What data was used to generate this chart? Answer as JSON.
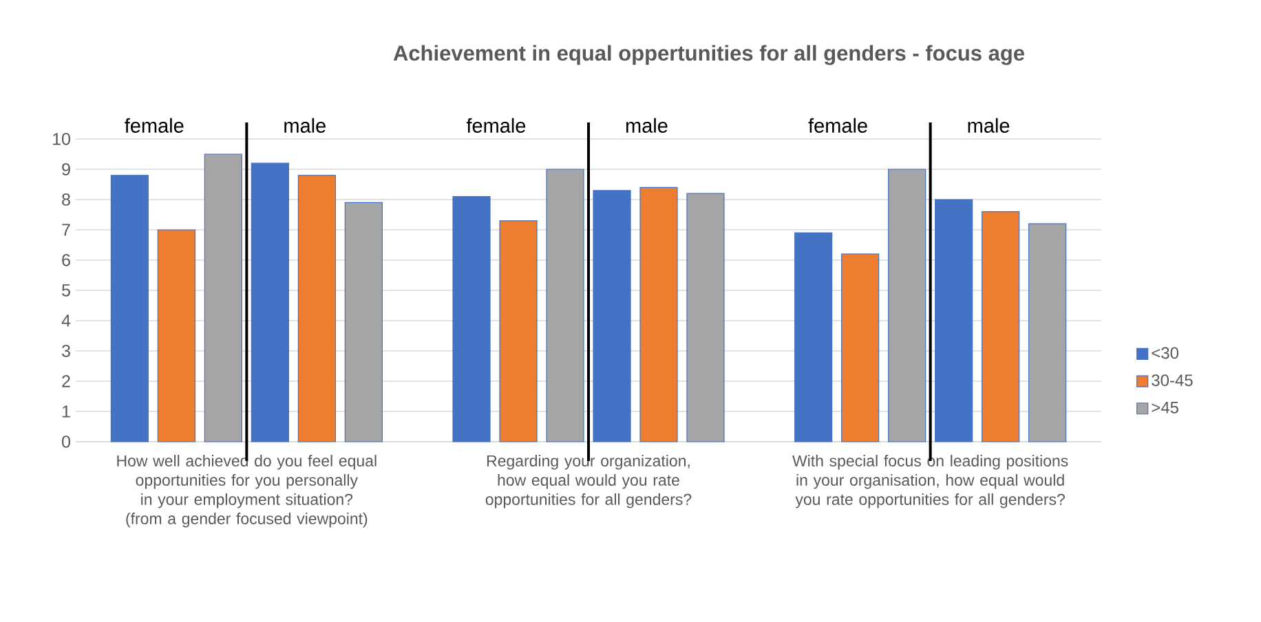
{
  "chart_data": {
    "type": "bar",
    "title": "Achievement in equal oppertunities for all genders - focus age",
    "categories": [
      "How well achieved do you feel equal opportunities for you personally in your employment situation? (from a gender focused viewpoint)",
      "Regarding your organization, how equal would you rate opportunities for all genders?",
      "With special focus on leading positions in your organisation, how equal would you rate opportunities for all genders?"
    ],
    "series": [
      {
        "name": "<30",
        "color": "#4472c4",
        "values": [
          8.8,
          8.1,
          6.9
        ]
      },
      {
        "name": "30-45",
        "color": "#ed7d31",
        "values": [
          7.0,
          7.3,
          6.2
        ]
      },
      {
        "name": ">45",
        "color": "#a5a5a5",
        "values": [
          9.5,
          9.0,
          9.0
        ]
      },
      {
        "color": "#4472c4",
        "values": [
          9.2,
          8.3,
          8.0
        ]
      },
      {
        "color": "#ed7d31",
        "values": [
          8.8,
          8.4,
          7.6
        ]
      },
      {
        "color": "#a5a5a5",
        "values": [
          7.9,
          8.2,
          7.2
        ]
      }
    ],
    "annotations": [
      "female",
      "male",
      "female",
      "male",
      "female",
      "male"
    ],
    "ref_lines": [
      {
        "axis": "x",
        "value": "How well achieved do you feel equal opportunities for you personally in your employment situation? (from a gender focused viewpoint)",
        "color": "#000000"
      },
      {
        "axis": "x",
        "value": "Regarding your organization, how equal would you rate opportunities for all genders?",
        "color": "#000000"
      },
      {
        "axis": "x",
        "value": "With special focus on leading positions in your organisation, how equal would you rate opportunities for all genders?",
        "color": "#000000"
      }
    ],
    "ylim": [
      0,
      10
    ],
    "yticks": [
      0,
      1,
      2,
      3,
      4,
      5,
      6,
      7,
      8,
      9,
      10
    ],
    "grid": "y",
    "legend": "right"
  }
}
